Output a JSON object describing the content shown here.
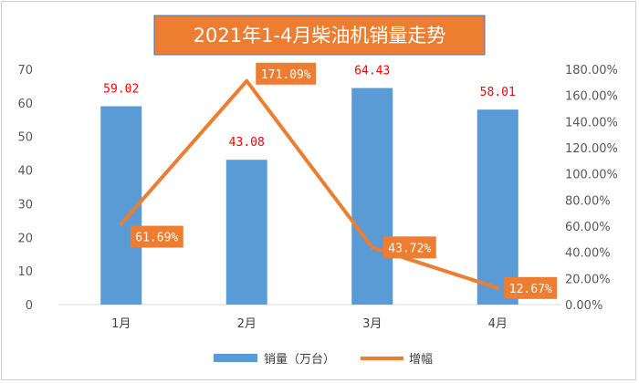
{
  "colors": {
    "bar": "#5b9bd5",
    "line": "#ed7d31",
    "title_bg": "#ed7d31",
    "title_border": "#4472c4",
    "bar_label": "#ff0000"
  },
  "chart_data": {
    "type": "bar",
    "title": "2021年1-4月柴油机销量走势",
    "categories": [
      "1月",
      "2月",
      "3月",
      "4月"
    ],
    "series": [
      {
        "name": "销量（万台）",
        "type": "bar",
        "axis": "left",
        "values": [
          59.02,
          43.08,
          64.43,
          58.01
        ],
        "labels": [
          "59.02",
          "43.08",
          "64.43",
          "58.01"
        ]
      },
      {
        "name": "增幅",
        "type": "line",
        "axis": "right",
        "values": [
          61.69,
          171.09,
          43.72,
          12.67
        ],
        "labels": [
          "61.69%",
          "171.09%",
          "43.72%",
          "12.67%"
        ]
      }
    ],
    "y_left": {
      "min": 0,
      "max": 70,
      "ticks": [
        "0",
        "10",
        "20",
        "30",
        "40",
        "50",
        "60",
        "70"
      ]
    },
    "y_right": {
      "min": 0,
      "max": 180,
      "ticks": [
        "0.00%",
        "20.00%",
        "40.00%",
        "60.00%",
        "80.00%",
        "100.00%",
        "120.00%",
        "140.00%",
        "160.00%",
        "180.00%"
      ]
    },
    "grid": false,
    "legend_position": "bottom"
  }
}
